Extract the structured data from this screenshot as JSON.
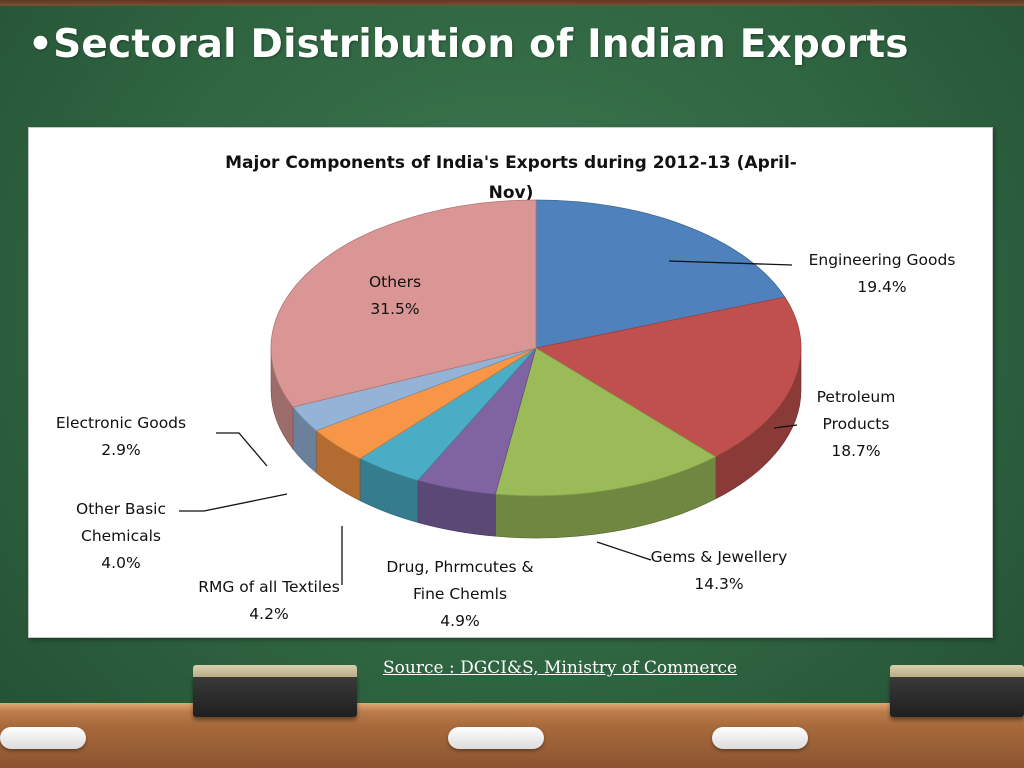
{
  "slide": {
    "title": "•Sectoral Distribution of Indian Exports",
    "source": "Source : DGCI&S, Ministry of Commerce"
  },
  "chart_data": {
    "type": "pie",
    "title_line1": "Major Components of India's Exports during 2012-13 (April-",
    "title_line2": "Nov)",
    "slices": [
      {
        "name": "Engineering Goods",
        "value": 19.4,
        "color": "#4f81bd",
        "label_lines": [
          "Engineering Goods"
        ],
        "value_label": "19.4%"
      },
      {
        "name": "Petroleum Products",
        "value": 18.7,
        "color": "#c0504d",
        "label_lines": [
          "Petroleum",
          "Products"
        ],
        "value_label": "18.7%"
      },
      {
        "name": "Gems & Jewellery",
        "value": 14.3,
        "color": "#9bbb59",
        "label_lines": [
          "Gems & Jewellery"
        ],
        "value_label": "14.3%"
      },
      {
        "name": "Drug, Phrmcutes & Fine Chemls",
        "value": 4.9,
        "color": "#8064a2",
        "label_lines": [
          "Drug, Phrmcutes &",
          "Fine Chemls"
        ],
        "value_label": "4.9%"
      },
      {
        "name": "RMG of all Textiles",
        "value": 4.2,
        "color": "#4bacc6",
        "label_lines": [
          "RMG of all Textiles"
        ],
        "value_label": "4.2%"
      },
      {
        "name": "Other Basic Chemicals",
        "value": 4.0,
        "color": "#f79646",
        "label_lines": [
          "Other Basic",
          "Chemicals"
        ],
        "value_label": "4.0%"
      },
      {
        "name": "Electronic Goods",
        "value": 2.9,
        "color": "#95b3d7",
        "label_lines": [
          "Electronic Goods"
        ],
        "value_label": "2.9%"
      },
      {
        "name": "Others",
        "value": 31.5,
        "color": "#d99694",
        "label_lines": [
          "Others"
        ],
        "value_label": "31.5%"
      }
    ]
  }
}
